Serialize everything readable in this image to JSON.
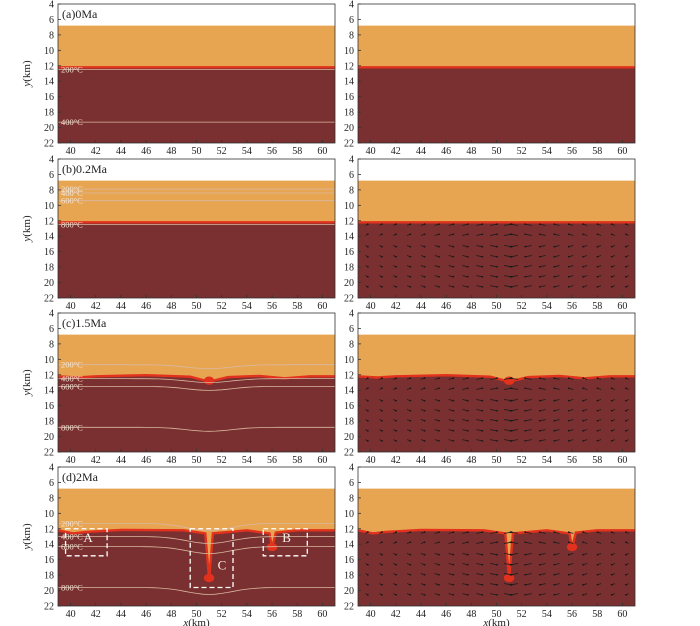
{
  "colors": {
    "background": "#ffffff",
    "upper_layer": "#e7a552",
    "lower_layer": "#7a3030",
    "melt": "#e2321d",
    "isotherm": "#d9b8a0",
    "vectors": "#1a1a1a",
    "box": "#ffffff"
  },
  "chart_data": {
    "type": "heatmap",
    "x_range": [
      39,
      61
    ],
    "y_range": [
      4,
      22
    ],
    "y_inverted": true,
    "x_ticks": [
      40,
      42,
      44,
      46,
      48,
      50,
      52,
      54,
      56,
      58,
      60
    ],
    "y_ticks": [
      4,
      6,
      8,
      10,
      12,
      14,
      16,
      18,
      20,
      22
    ],
    "xlabel_var": "x",
    "xlabel_unit": "(km)",
    "ylabel_var": "y",
    "ylabel_unit": "(km)",
    "surface_depth": 6.8,
    "interface_depth": 12.2,
    "rows": [
      {
        "label": "(a)0Ma",
        "isotherms": [
          {
            "label": "200°C",
            "depth": 12.5
          },
          {
            "label": "400°C",
            "depth": 19.3
          }
        ],
        "interface": [
          [
            39,
            12.2
          ],
          [
            61,
            12.2
          ]
        ],
        "vectors": false
      },
      {
        "label": "(b)0.2Ma",
        "isotherms": [
          {
            "label": "200°C",
            "depth": 7.9
          },
          {
            "label": "400°C",
            "depth": 8.4
          },
          {
            "label": "600°C",
            "depth": 9.4
          },
          {
            "label": "800°C",
            "depth": 12.5
          }
        ],
        "interface": [
          [
            39,
            12.2
          ],
          [
            61,
            12.2
          ]
        ],
        "vectors": true
      },
      {
        "label": "(c)1.5Ma",
        "isotherms": [
          {
            "label": "200°C",
            "depth": 10.7
          },
          {
            "label": "400°C",
            "depth": 12.5
          },
          {
            "label": "600°C",
            "depth": 13.5
          },
          {
            "label": "800°C",
            "depth": 18.8
          }
        ],
        "interface": [
          [
            39,
            12.2
          ],
          [
            40.5,
            12.35
          ],
          [
            42,
            12.2
          ],
          [
            46,
            12.05
          ],
          [
            49.5,
            12.25
          ],
          [
            51,
            12.9
          ],
          [
            52.5,
            12.3
          ],
          [
            55,
            12.15
          ],
          [
            57,
            12.45
          ],
          [
            59,
            12.2
          ],
          [
            61,
            12.2
          ]
        ],
        "vectors": true
      },
      {
        "label": "(d)2Ma",
        "isotherms": [
          {
            "label": "200°C",
            "depth": 11.3
          },
          {
            "label": "400°C",
            "depth": 13.0
          },
          {
            "label": "600°C",
            "depth": 14.3
          },
          {
            "label": "800°C",
            "depth": 19.6
          }
        ],
        "interface": [
          [
            39,
            12.2
          ],
          [
            40.2,
            12.6
          ],
          [
            41.2,
            12.4
          ],
          [
            44,
            12.15
          ],
          [
            49,
            12.2
          ],
          [
            50.7,
            12.6
          ],
          [
            51,
            18.5
          ],
          [
            51.3,
            12.6
          ],
          [
            54,
            12.2
          ],
          [
            55.8,
            12.6
          ],
          [
            56,
            14.5
          ],
          [
            56.3,
            12.5
          ],
          [
            58,
            12.2
          ],
          [
            61,
            12.2
          ]
        ],
        "vectors": true,
        "boxes": [
          {
            "label": "A",
            "x0": 39.6,
            "x1": 42.9,
            "y0": 12.0,
            "y1": 15.5
          },
          {
            "label": "C",
            "x0": 49.5,
            "x1": 52.9,
            "y0": 12.0,
            "y1": 19.6
          },
          {
            "label": "B",
            "x0": 55.3,
            "x1": 58.8,
            "y0": 12.0,
            "y1": 15.5
          }
        ]
      }
    ]
  }
}
